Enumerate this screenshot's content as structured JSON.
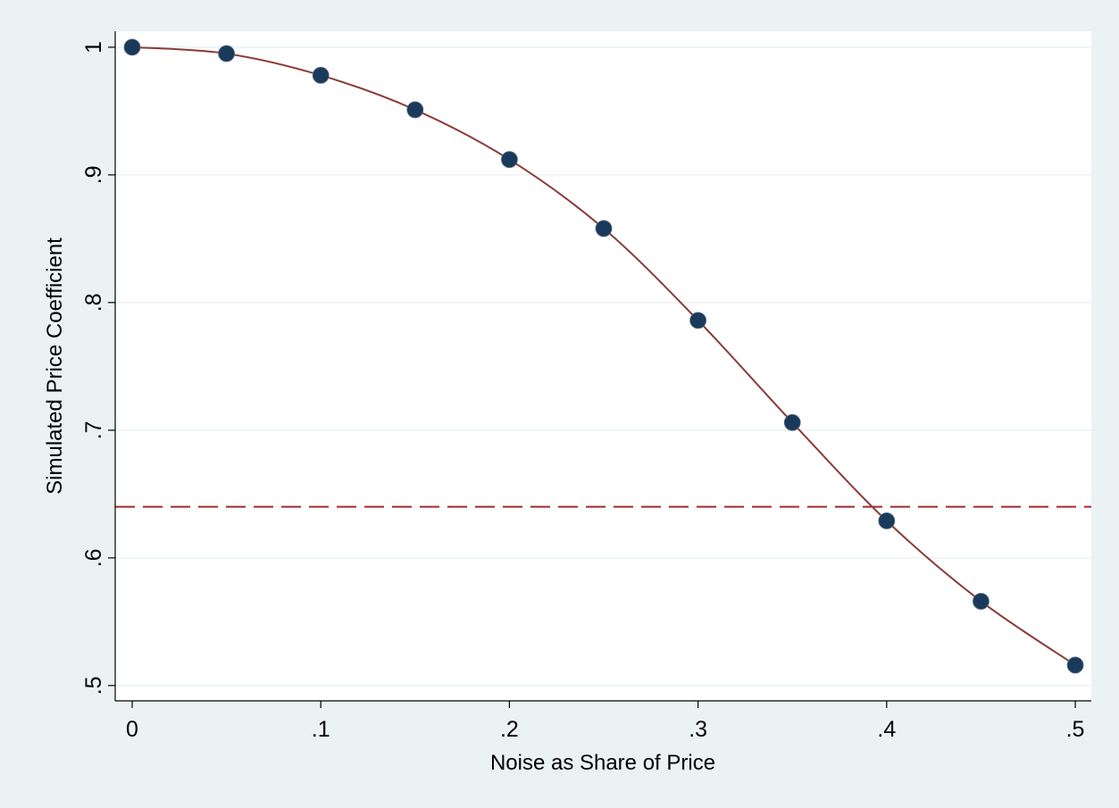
{
  "chart_data": {
    "type": "line",
    "title": "",
    "xlabel": "Noise as Share of Price",
    "ylabel": "Simulated Price Coefficient",
    "x": [
      0,
      0.05,
      0.1,
      0.15,
      0.2,
      0.25,
      0.3,
      0.35,
      0.4,
      0.45,
      0.5
    ],
    "series": [
      {
        "values": [
          1.0,
          0.995,
          0.978,
          0.951,
          0.912,
          0.858,
          0.786,
          0.706,
          0.629,
          0.566,
          0.516
        ]
      }
    ],
    "reference_line": {
      "y": 0.64,
      "style": "dashed"
    },
    "xlim": [
      -0.009,
      0.5085
    ],
    "ylim": [
      0.488,
      1.0125
    ],
    "xticks": [
      0,
      0.1,
      0.2,
      0.3,
      0.4,
      0.5
    ],
    "xtick_labels": [
      "0",
      ".1",
      ".2",
      ".3",
      ".4",
      ".5"
    ],
    "yticks": [
      0.5,
      0.6,
      0.7,
      0.8,
      0.9,
      1.0
    ],
    "ytick_labels": [
      ".5",
      ".6",
      ".7",
      ".8",
      ".9",
      "1"
    ],
    "grid": true,
    "legend": "none",
    "colors": {
      "background": "#eaf2f3",
      "plot_background": "#ffffff",
      "line": "#8b3a3a",
      "marker": "#1a3a5c",
      "reference_line": "#a52a2a",
      "grid": "#eaf2f3"
    }
  }
}
